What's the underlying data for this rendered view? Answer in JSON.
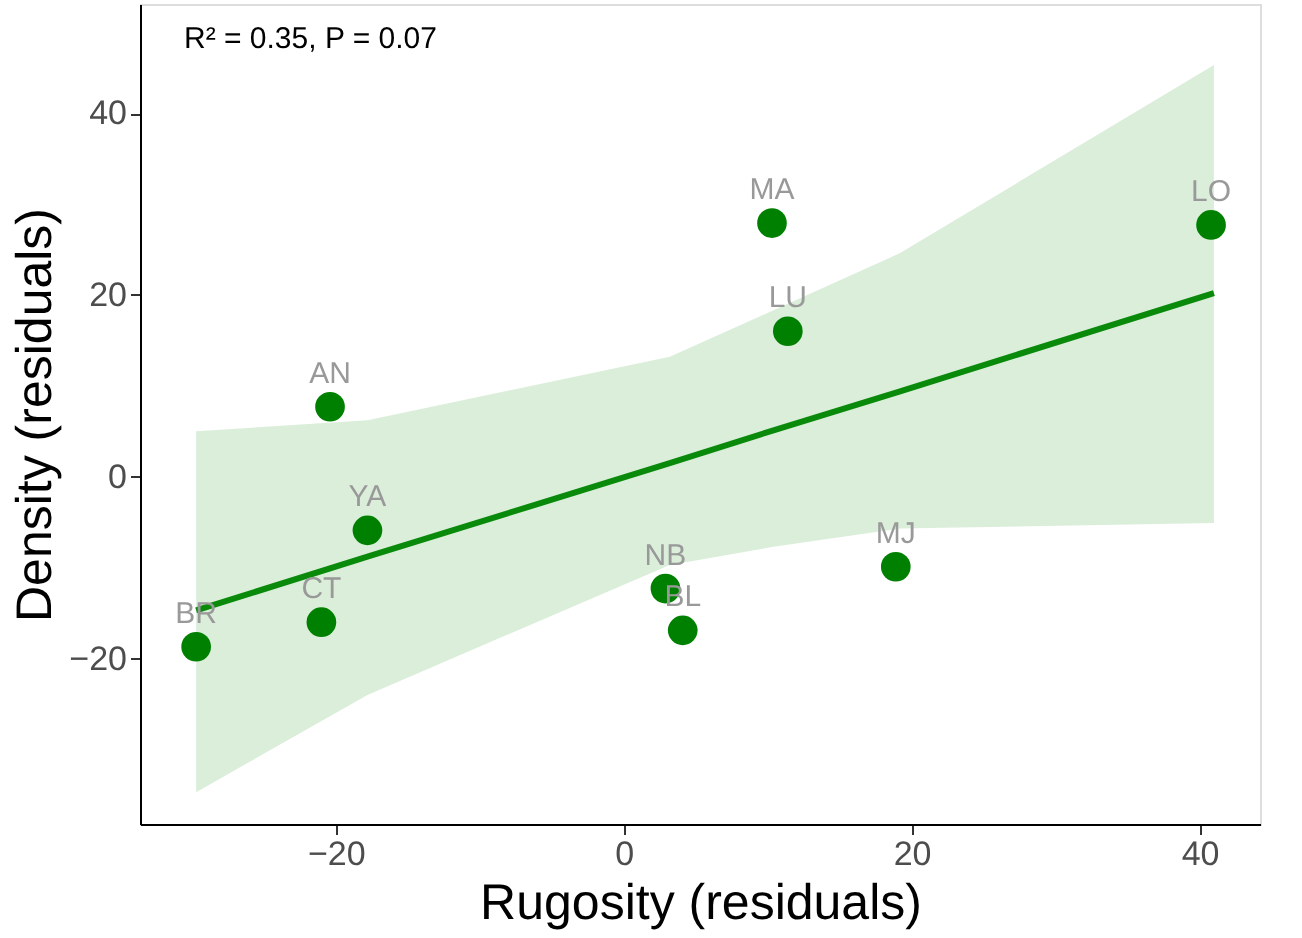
{
  "chart_data": {
    "type": "scatter",
    "xlabel": "Rugosity (residuals)",
    "ylabel": "Density (residuals)",
    "xlim": [
      -33.6,
      44.2
    ],
    "ylim": [
      -38.2,
      52
    ],
    "xticks": [
      -20,
      0,
      20,
      40
    ],
    "yticks": [
      -20,
      0,
      20,
      40
    ],
    "grid": false,
    "series": [
      {
        "type": "line",
        "color": "#0a8a0a",
        "x": [
          -29.7,
          -17.8,
          3.2,
          10.4,
          19.2,
          41.0
        ],
        "values": [
          -14.7,
          -8.8,
          1.5,
          5.1,
          9.4,
          20.2
        ],
        "lower": [
          -34.7,
          -24.0,
          -9.7,
          -7.7,
          -5.7,
          -5.1
        ],
        "upper": [
          5.0,
          6.2,
          13.2,
          18.3,
          24.6,
          45.3
        ]
      },
      {
        "marker": "circle",
        "color": "#008000",
        "x": [
          -29.7,
          -21.0,
          -17.8,
          -20.4,
          2.9,
          4.1,
          10.3,
          11.4,
          18.9,
          40.8
        ],
        "values": [
          -18.7,
          -16.0,
          -5.9,
          7.7,
          -12.3,
          -16.9,
          27.9,
          16.0,
          -9.9,
          27.7
        ]
      }
    ],
    "annotations": [
      "R² = 0.35, P = 0.07",
      {
        "text": "BR",
        "x": -29.7,
        "y": -18.7
      },
      {
        "text": "CT",
        "x": -21.0,
        "y": -16.0
      },
      {
        "text": "YA",
        "x": -17.8,
        "y": -5.9
      },
      {
        "text": "AN",
        "x": -20.4,
        "y": 7.7
      },
      {
        "text": "NB",
        "x": 2.9,
        "y": -12.3
      },
      {
        "text": "BL",
        "x": 4.1,
        "y": -16.9
      },
      {
        "text": "MA",
        "x": 10.3,
        "y": 27.9
      },
      {
        "text": "LU",
        "x": 11.4,
        "y": 16.0
      },
      {
        "text": "MJ",
        "x": 18.9,
        "y": -9.9
      },
      {
        "text": "LO",
        "x": 40.8,
        "y": 27.7
      }
    ]
  }
}
